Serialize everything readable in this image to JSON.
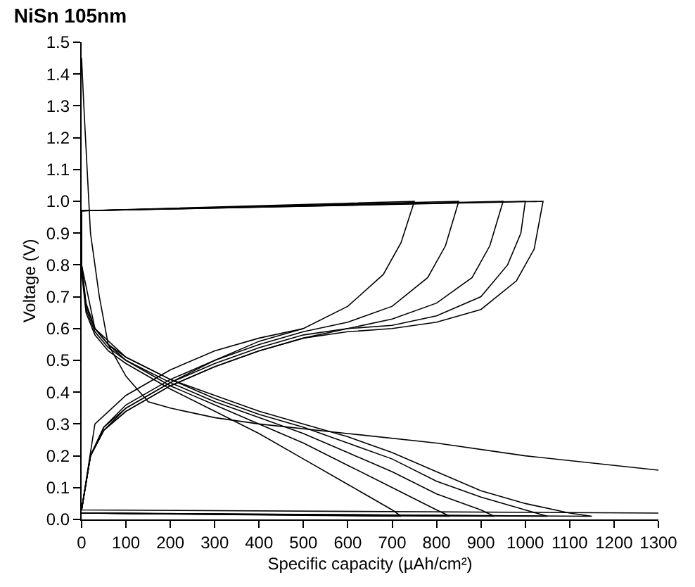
{
  "chart_data": {
    "type": "line",
    "title": "NiSn 105nm",
    "xlabel": "Specific capacity (µAh/cm²)",
    "ylabel": "Voltage (V)",
    "series": [
      {
        "color": "#000000",
        "x": [
          0,
          5,
          20,
          40,
          60,
          100,
          150,
          200,
          300,
          400,
          600,
          800,
          1000,
          1300
        ],
        "values": [
          1.45,
          1.3,
          0.9,
          0.7,
          0.55,
          0.45,
          0.37,
          0.35,
          0.32,
          0.3,
          0.27,
          0.24,
          0.2,
          0.155
        ]
      },
      {
        "color": "#000000",
        "x": [
          1300,
          0,
          30,
          100,
          200,
          300,
          400,
          500
        ],
        "values": [
          0.02,
          0.03,
          0.3,
          0.39,
          0.47,
          0.53,
          0.57,
          0.6
        ]
      },
      {
        "color": "#000000",
        "x": [
          0,
          20,
          50,
          100,
          200,
          300,
          400,
          500,
          600,
          700,
          800,
          900,
          980,
          1020,
          1040,
          0,
          0,
          10,
          30,
          60,
          100,
          200,
          300,
          400,
          500,
          600,
          700,
          800,
          900,
          1000,
          1050,
          0
        ],
        "values": [
          0.03,
          0.2,
          0.28,
          0.34,
          0.42,
          0.48,
          0.53,
          0.57,
          0.59,
          0.6,
          0.62,
          0.66,
          0.75,
          0.85,
          1.0,
          0.97,
          0.8,
          0.68,
          0.6,
          0.55,
          0.51,
          0.44,
          0.38,
          0.33,
          0.29,
          0.24,
          0.19,
          0.12,
          0.07,
          0.03,
          0.01,
          0.02
        ]
      },
      {
        "color": "#000000",
        "x": [
          0,
          20,
          50,
          100,
          200,
          300,
          400,
          500,
          600,
          700,
          800,
          880,
          920,
          950,
          0,
          0,
          10,
          30,
          60,
          100,
          200,
          300,
          400,
          500,
          600,
          700,
          800,
          900,
          930,
          0
        ],
        "values": [
          0.03,
          0.2,
          0.28,
          0.35,
          0.43,
          0.49,
          0.54,
          0.58,
          0.6,
          0.63,
          0.68,
          0.76,
          0.86,
          1.0,
          0.97,
          0.8,
          0.67,
          0.6,
          0.55,
          0.5,
          0.43,
          0.37,
          0.32,
          0.27,
          0.21,
          0.15,
          0.08,
          0.03,
          0.01,
          0.02
        ]
      },
      {
        "color": "#000000",
        "x": [
          0,
          20,
          50,
          100,
          200,
          300,
          400,
          500,
          600,
          700,
          780,
          820,
          850,
          0,
          0,
          10,
          30,
          60,
          100,
          200,
          300,
          400,
          500,
          600,
          700,
          800,
          830,
          0
        ],
        "values": [
          0.03,
          0.2,
          0.29,
          0.35,
          0.43,
          0.5,
          0.55,
          0.59,
          0.62,
          0.67,
          0.76,
          0.86,
          1.0,
          0.97,
          0.79,
          0.66,
          0.59,
          0.54,
          0.5,
          0.42,
          0.36,
          0.3,
          0.24,
          0.17,
          0.1,
          0.03,
          0.01,
          0.02
        ]
      },
      {
        "color": "#000000",
        "x": [
          0,
          20,
          50,
          100,
          200,
          300,
          400,
          500,
          600,
          680,
          720,
          750,
          0,
          0,
          10,
          30,
          60,
          100,
          200,
          300,
          400,
          500,
          600,
          700,
          720,
          0
        ],
        "values": [
          0.03,
          0.2,
          0.29,
          0.36,
          0.44,
          0.5,
          0.56,
          0.6,
          0.67,
          0.77,
          0.87,
          1.0,
          0.97,
          0.78,
          0.65,
          0.58,
          0.53,
          0.49,
          0.41,
          0.34,
          0.27,
          0.19,
          0.11,
          0.03,
          0.01,
          0.02
        ]
      },
      {
        "color": "#000000",
        "x": [
          0,
          20,
          50,
          100,
          200,
          300,
          400,
          500,
          600,
          700,
          800,
          900,
          960,
          990,
          1000,
          0,
          0,
          30,
          100,
          200,
          300,
          400,
          500,
          600,
          700,
          800,
          900,
          1000,
          1100,
          1150,
          0
        ],
        "values": [
          0.03,
          0.2,
          0.28,
          0.34,
          0.42,
          0.48,
          0.53,
          0.57,
          0.6,
          0.61,
          0.64,
          0.7,
          0.8,
          0.9,
          1.0,
          0.97,
          0.8,
          0.6,
          0.51,
          0.44,
          0.39,
          0.34,
          0.3,
          0.26,
          0.21,
          0.15,
          0.09,
          0.05,
          0.02,
          0.01,
          0.02
        ]
      }
    ],
    "xlim": [
      0,
      1300
    ],
    "xticks": [
      0,
      100,
      200,
      300,
      400,
      500,
      600,
      700,
      800,
      900,
      1000,
      1100,
      1200,
      1300
    ],
    "ylim": [
      0,
      1.5
    ],
    "yticks": [
      {
        "value": 0,
        "label": "0.0"
      },
      0.1,
      0.2,
      0.3,
      0.4,
      0.5,
      0.6,
      0.7,
      0.8,
      0.9,
      {
        "value": 1,
        "label": "1.0"
      },
      1.1,
      1.2,
      1.3,
      1.4,
      1.5
    ],
    "grid": false,
    "marker": "none",
    "line_style": "solid"
  }
}
